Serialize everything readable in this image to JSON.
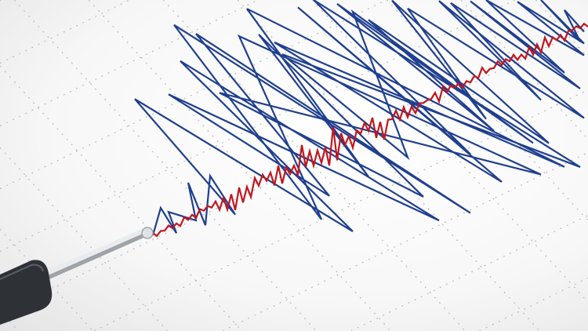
{
  "image": {
    "subject": "seismograph",
    "colors": {
      "paper": "#f7f7f7",
      "grid": "#b9b9b9",
      "trace_primary": "#1f3f8f",
      "trace_secondary": "#c0161e",
      "stylus": "#cfd3d6",
      "stylus_holder": "#2e3236"
    }
  }
}
